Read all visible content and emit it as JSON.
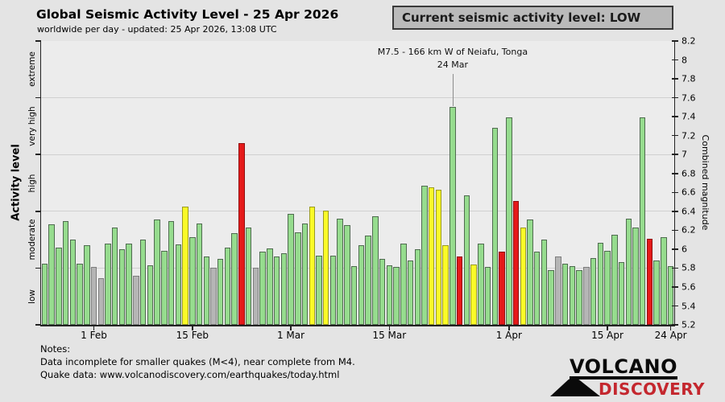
{
  "header": {
    "title": "Global Seismic Activity Level - 25 Apr 2026",
    "subtitle": "worldwide per day - updated: 25 Apr 2026, 13:08 UTC",
    "banner": "Current seismic activity level: LOW"
  },
  "palette": {
    "banner_bg": "#bababa",
    "logo_red": "#c4272e",
    "plot_bg": "#ececec",
    "page_bg": "#e4e4e4"
  },
  "chart_data": {
    "type": "bar",
    "title": "Global Seismic Activity Level - 25 Apr 2026",
    "subtitle": "worldwide per day - updated: 25 Apr 2026, 13:08 UTC",
    "x_range_days": 90,
    "x_start": "25 Jan",
    "x_end": "24 Apr",
    "x_ticks": [
      {
        "label": "1 Feb",
        "day": 7
      },
      {
        "label": "15 Feb",
        "day": 21
      },
      {
        "label": "1 Mar",
        "day": 35
      },
      {
        "label": "15 Mar",
        "day": 49
      },
      {
        "label": "1 Apr",
        "day": 66
      },
      {
        "label": "15 Apr",
        "day": 80
      },
      {
        "label": "24 Apr",
        "day": 89
      }
    ],
    "y_left": {
      "label": "Activity level",
      "categories": [
        "low",
        "moderate",
        "high",
        "very high",
        "extreme"
      ],
      "band_boundaries": [
        5.2,
        5.8,
        6.4,
        7.0,
        7.6,
        8.2
      ]
    },
    "y_right": {
      "label": "Combined magnitude",
      "min": 5.2,
      "max": 8.2,
      "ticks": [
        5.2,
        5.4,
        5.6,
        5.8,
        6,
        6.2,
        6.4,
        6.6,
        6.8,
        7,
        7.2,
        7.4,
        7.6,
        7.8,
        8,
        8.2
      ]
    },
    "grid": "horizontal band boundaries only",
    "annotation": {
      "text": "M7.5 - 166 km W of Neiafu, Tonga",
      "date_label": "24 Mar",
      "day_index": 58,
      "magnitude": 7.5
    },
    "values": [
      5.85,
      6.26,
      6.02,
      6.3,
      6.1,
      5.85,
      6.04,
      5.81,
      5.69,
      6.06,
      6.23,
      6.0,
      6.06,
      5.72,
      6.1,
      5.83,
      6.31,
      5.98,
      6.3,
      6.05,
      6.45,
      6.13,
      6.27,
      5.92,
      5.8,
      5.9,
      6.02,
      6.17,
      7.12,
      6.23,
      5.8,
      5.97,
      6.01,
      5.92,
      5.96,
      6.37,
      6.18,
      6.27,
      6.45,
      5.93,
      6.41,
      5.93,
      6.32,
      6.25,
      5.82,
      6.04,
      6.14,
      6.35,
      5.9,
      5.83,
      5.81,
      6.06,
      5.88,
      6.0,
      6.67,
      6.65,
      6.63,
      6.04,
      7.5,
      5.92,
      6.57,
      5.84,
      6.06,
      5.81,
      7.28,
      5.97,
      7.39,
      6.51,
      6.23,
      6.31,
      5.97,
      6.1,
      5.78,
      5.92,
      5.85,
      5.82,
      5.78,
      5.81,
      5.91,
      6.07,
      5.98,
      6.15,
      5.86,
      6.32,
      6.23,
      7.39,
      6.11,
      5.88,
      6.13,
      5.82
    ],
    "levels": "gggggggxxggggxggggggygggxgggrgxgggggggygyggggggggggggggyyygrgygggrgryggggxgggxggggggggrgggx",
    "level_colors": {
      "g": {
        "name": "normal-green",
        "fill": "#96dc8e",
        "border": "#4f6b4f"
      },
      "x": {
        "name": "incomplete-gray",
        "fill": "#b5b5b5",
        "border": "#7d7d7d"
      },
      "y": {
        "name": "elevated-yellow",
        "fill": "#fafa28",
        "border": "#9a9a20"
      },
      "r": {
        "name": "high-red",
        "fill": "#e51a1a",
        "border": "#8f1010"
      }
    }
  },
  "notes": {
    "lines": [
      "Notes:",
      "Data incomplete for smaller quakes (M<4), near complete from M4.",
      "Quake data: www.volcanodiscovery.com/earthquakes/today.html"
    ]
  },
  "logo": {
    "line1": "VOLCANO",
    "line2": "DISCOVERY"
  }
}
